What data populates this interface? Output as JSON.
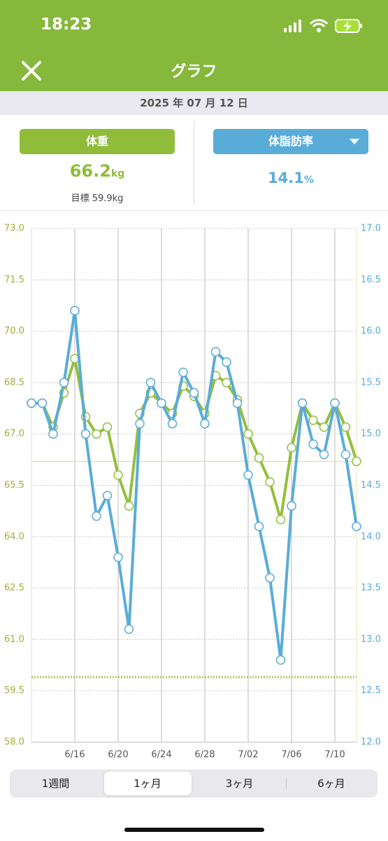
{
  "status_bar": {
    "time": "18:23"
  },
  "header": {
    "title": "グラフ"
  },
  "date": "2025 年 07 月 12 日",
  "panels": {
    "weight": {
      "label": "体重",
      "value": "66.2",
      "unit": "kg",
      "goal": "目標 59.9kg"
    },
    "fat": {
      "label": "体脂肪率",
      "value": "14.1",
      "unit": "%"
    }
  },
  "chart_data": {
    "type": "line",
    "categories": [
      null,
      null,
      null,
      null,
      "6/16",
      null,
      null,
      null,
      "6/20",
      null,
      null,
      null,
      "6/24",
      null,
      null,
      null,
      "6/28",
      null,
      null,
      null,
      "7/02",
      null,
      null,
      null,
      "7/06",
      null,
      null,
      null,
      "7/10",
      null,
      null
    ],
    "series": [
      {
        "name": "体重",
        "color": "#93bf3c",
        "values": [
          67.9,
          67.9,
          67.2,
          68.2,
          69.2,
          67.5,
          67.0,
          67.2,
          65.8,
          64.9,
          67.6,
          68.2,
          67.9,
          67.6,
          68.4,
          68.1,
          67.6,
          68.7,
          68.5,
          68.0,
          67.0,
          66.3,
          65.6,
          64.5,
          66.6,
          67.9,
          67.4,
          67.2,
          67.9,
          67.2,
          66.2
        ]
      },
      {
        "name": "体脂肪率",
        "color": "#5aacd8",
        "axis": "y2",
        "values": [
          15.3,
          15.3,
          15.0,
          15.5,
          16.2,
          15.0,
          14.2,
          14.4,
          13.8,
          13.1,
          15.1,
          15.5,
          15.3,
          15.1,
          15.6,
          15.4,
          15.1,
          15.8,
          15.7,
          15.3,
          14.6,
          14.1,
          13.6,
          12.8,
          14.3,
          15.3,
          14.9,
          14.8,
          15.3,
          14.8,
          14.1
        ]
      }
    ],
    "ylim": [
      58,
      73
    ],
    "yticks": [
      {
        "value": 58,
        "label": "58.0"
      },
      59.5,
      {
        "value": 61,
        "label": "61.0"
      },
      62.5,
      {
        "value": 64,
        "label": "64.0"
      },
      65.5,
      {
        "value": 67,
        "label": "67.0"
      },
      68.5,
      {
        "value": 70,
        "label": "70.0"
      },
      71.5,
      {
        "value": 73,
        "label": "73.0"
      }
    ],
    "y2lim": [
      12,
      17
    ],
    "y2ticks": [
      {
        "value": 12,
        "label": "12.0"
      },
      12.5,
      {
        "value": 13,
        "label": "13.0"
      },
      13.5,
      {
        "value": 14,
        "label": "14.0"
      },
      14.5,
      {
        "value": 15,
        "label": "15.0"
      },
      15.5,
      {
        "value": 16,
        "label": "16.0"
      },
      16.5,
      {
        "value": 17,
        "label": "17.0"
      }
    ],
    "goal_line": 59.9,
    "current_line": 66.2,
    "grid": true
  },
  "tabs": {
    "items": [
      "1週間",
      "1ヶ月",
      "3ヶ月",
      "6ヶ月"
    ],
    "selected": 1
  }
}
